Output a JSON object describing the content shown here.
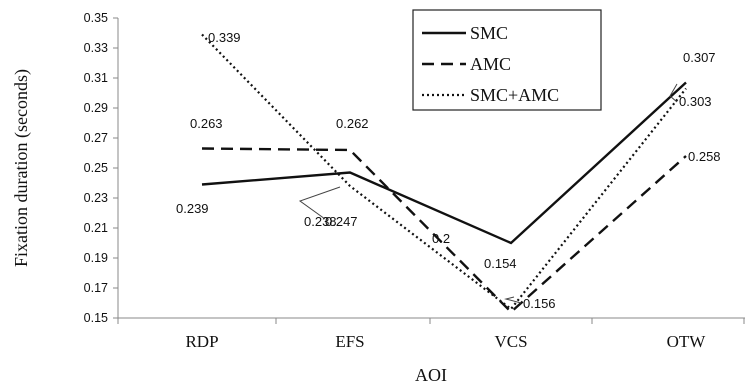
{
  "chart_data": {
    "type": "line",
    "title": "",
    "xlabel": "AOI",
    "ylabel": "Fixation duration (seconds)",
    "categories": [
      "RDP",
      "EFS",
      "VCS",
      "OTW"
    ],
    "ylim": [
      0.15,
      0.35
    ],
    "yticks": [
      "0.15",
      "0.17",
      "0.19",
      "0.21",
      "0.23",
      "0.25",
      "0.27",
      "0.29",
      "0.31",
      "0.33",
      "0.35"
    ],
    "grid": false,
    "legend_position": "top-right",
    "series": [
      {
        "name": "SMC",
        "style": "solid",
        "values": [
          0.239,
          0.247,
          0.2,
          0.307
        ],
        "labels": [
          "0.239",
          "0.247",
          "0.2",
          "0.307"
        ]
      },
      {
        "name": "AMC",
        "style": "dashed",
        "values": [
          0.263,
          0.262,
          0.154,
          0.258
        ],
        "labels": [
          "0.263",
          "0.262",
          "0.154",
          "0.258"
        ]
      },
      {
        "name": "SMC+AMC",
        "style": "dotted",
        "values": [
          0.339,
          0.238,
          0.156,
          0.303
        ],
        "labels": [
          "0.339",
          "0.238",
          "0.156",
          "0.303"
        ]
      }
    ],
    "colors": {
      "line": "#111111",
      "axis": "#888888"
    }
  }
}
